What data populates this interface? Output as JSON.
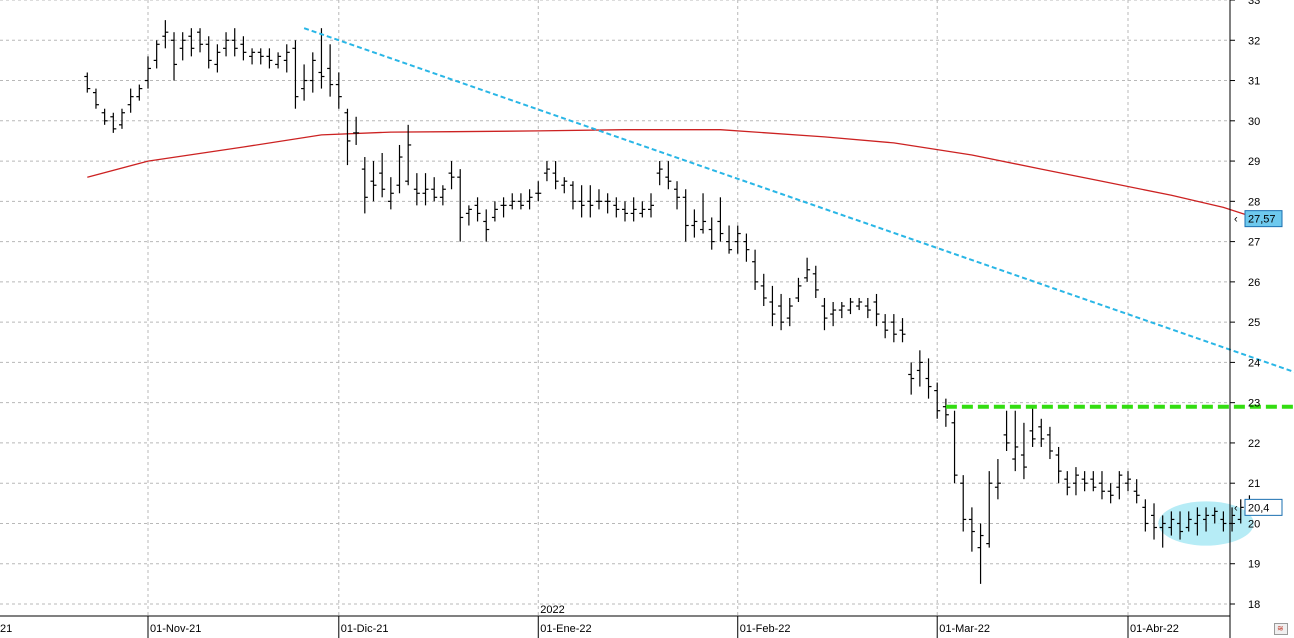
{
  "chart_data": {
    "type": "ohlc",
    "y_axis": {
      "ticks": [
        18,
        19,
        20,
        21,
        22,
        23,
        24,
        25,
        26,
        27,
        28,
        29,
        30,
        31,
        32,
        33
      ],
      "range": [
        17.6,
        33.1
      ],
      "position": "right"
    },
    "x_axis": {
      "tick_labels": [
        "21",
        "01-Nov-21",
        "01-Dic-21",
        "01-Ene-22",
        "01-Feb-22",
        "01-Mar-22",
        "01-Abr-22"
      ],
      "tick_day_index": [
        -7,
        0,
        22,
        45,
        68,
        91,
        113
      ],
      "year_marker": {
        "label": "2022",
        "day_index": 45
      },
      "range_days": [
        -7,
        132
      ]
    },
    "grid": true,
    "price_tags": [
      {
        "label": "27,57",
        "value": 27.57
      },
      {
        "label": "20,4",
        "value": 20.4
      }
    ],
    "moving_average": {
      "color": "#cc2222",
      "points": [
        [
          -7,
          28.6
        ],
        [
          0,
          29.0
        ],
        [
          11,
          29.35
        ],
        [
          20,
          29.65
        ],
        [
          28,
          29.72
        ],
        [
          35,
          29.73
        ],
        [
          45,
          29.75
        ],
        [
          55,
          29.78
        ],
        [
          66,
          29.78
        ],
        [
          78,
          29.6
        ],
        [
          86,
          29.45
        ],
        [
          95,
          29.15
        ],
        [
          103,
          28.8
        ],
        [
          110,
          28.5
        ],
        [
          118,
          28.15
        ],
        [
          124,
          27.85
        ],
        [
          128,
          27.57
        ]
      ]
    },
    "trendline": {
      "color": "#29b6e6",
      "start": [
        18,
        32.3
      ],
      "end": [
        133,
        23.7
      ]
    },
    "resistance": {
      "color": "#33dd11",
      "value": 22.9,
      "start": 92,
      "end": 133
    },
    "highlight_ellipse": {
      "color": "#aeeaf5",
      "center": [
        122,
        20.0
      ],
      "radius_days": 5.5,
      "radius_value": 0.55
    },
    "bars": [
      [
        -7,
        31.1,
        31.2,
        30.7,
        30.8
      ],
      [
        -6,
        30.7,
        30.8,
        30.3,
        30.4
      ],
      [
        -5,
        30.2,
        30.3,
        29.9,
        30.0
      ],
      [
        -4,
        30.1,
        30.2,
        29.7,
        29.8
      ],
      [
        -3,
        29.9,
        30.3,
        29.8,
        30.2
      ],
      [
        -2,
        30.4,
        30.8,
        30.2,
        30.6
      ],
      [
        -1,
        30.6,
        30.9,
        30.5,
        30.8
      ],
      [
        0,
        31.0,
        31.6,
        30.8,
        31.3
      ],
      [
        1,
        31.5,
        32.0,
        31.3,
        31.9
      ],
      [
        2,
        32.1,
        32.5,
        31.8,
        32.2
      ],
      [
        3,
        32.0,
        32.2,
        31.0,
        31.4
      ],
      [
        4,
        31.8,
        32.2,
        31.5,
        32.0
      ],
      [
        5,
        32.1,
        32.3,
        31.6,
        31.8
      ],
      [
        6,
        32.2,
        32.3,
        31.7,
        31.9
      ],
      [
        7,
        31.9,
        32.1,
        31.3,
        31.5
      ],
      [
        8,
        31.4,
        31.9,
        31.2,
        31.7
      ],
      [
        9,
        31.8,
        32.2,
        31.6,
        32.0
      ],
      [
        10,
        32.0,
        32.3,
        31.6,
        31.8
      ],
      [
        11,
        31.9,
        32.1,
        31.5,
        31.7
      ],
      [
        12,
        31.6,
        31.8,
        31.4,
        31.7
      ],
      [
        13,
        31.7,
        31.8,
        31.4,
        31.6
      ],
      [
        14,
        31.6,
        31.8,
        31.3,
        31.5
      ],
      [
        15,
        31.4,
        31.7,
        31.3,
        31.6
      ],
      [
        16,
        31.5,
        31.9,
        31.2,
        31.7
      ],
      [
        17,
        31.8,
        32.0,
        30.3,
        30.6
      ],
      [
        18,
        30.8,
        31.4,
        30.5,
        31.0
      ],
      [
        19,
        31.0,
        31.7,
        30.7,
        31.5
      ],
      [
        20,
        31.2,
        32.3,
        30.8,
        31.1
      ],
      [
        21,
        31.3,
        31.9,
        30.6,
        30.9
      ],
      [
        22,
        30.9,
        31.2,
        30.3,
        30.6
      ],
      [
        23,
        30.2,
        30.3,
        28.9,
        29.5
      ],
      [
        24,
        29.7,
        30.1,
        29.4,
        29.7
      ],
      [
        25,
        28.8,
        29.1,
        27.7,
        28.1
      ],
      [
        26,
        28.5,
        29.0,
        28.0,
        28.4
      ],
      [
        27,
        28.7,
        29.2,
        28.1,
        28.3
      ],
      [
        28,
        28.0,
        28.6,
        27.8,
        28.2
      ],
      [
        29,
        28.4,
        29.4,
        28.2,
        29.1
      ],
      [
        30,
        28.5,
        29.9,
        28.4,
        29.4
      ],
      [
        31,
        28.3,
        28.7,
        27.9,
        28.2
      ],
      [
        32,
        28.2,
        28.7,
        27.9,
        28.3
      ],
      [
        33,
        28.3,
        28.6,
        28.0,
        28.1
      ],
      [
        34,
        28.1,
        28.4,
        27.9,
        28.3
      ],
      [
        35,
        28.7,
        29.0,
        28.3,
        28.6
      ],
      [
        36,
        28.6,
        28.8,
        27.0,
        27.6
      ],
      [
        37,
        27.7,
        27.9,
        27.4,
        27.8
      ],
      [
        38,
        27.9,
        28.1,
        27.5,
        27.7
      ],
      [
        39,
        27.5,
        27.8,
        27.0,
        27.3
      ],
      [
        40,
        27.6,
        28.0,
        27.5,
        27.8
      ],
      [
        41,
        27.9,
        28.1,
        27.6,
        27.9
      ],
      [
        42,
        27.9,
        28.2,
        27.8,
        28.0
      ],
      [
        43,
        28.0,
        28.2,
        27.8,
        27.9
      ],
      [
        44,
        28.0,
        28.3,
        27.8,
        28.1
      ],
      [
        45,
        28.2,
        28.5,
        28.0,
        28.2
      ],
      [
        46,
        28.7,
        29.0,
        28.5,
        28.8
      ],
      [
        47,
        28.7,
        29.0,
        28.3,
        28.5
      ],
      [
        48,
        28.4,
        28.6,
        28.2,
        28.5
      ],
      [
        49,
        28.4,
        28.5,
        27.8,
        28.0
      ],
      [
        50,
        28.0,
        28.4,
        27.6,
        27.9
      ],
      [
        51,
        28.0,
        28.4,
        27.6,
        27.9
      ],
      [
        52,
        28.0,
        28.3,
        27.8,
        28.0
      ],
      [
        53,
        28.0,
        28.2,
        27.7,
        28.0
      ],
      [
        54,
        27.9,
        28.1,
        27.6,
        27.8
      ],
      [
        55,
        27.8,
        28.0,
        27.5,
        27.7
      ],
      [
        56,
        27.7,
        28.1,
        27.5,
        27.8
      ],
      [
        57,
        27.7,
        28.0,
        27.6,
        27.8
      ],
      [
        58,
        27.8,
        28.2,
        27.6,
        27.9
      ],
      [
        59,
        28.7,
        29.0,
        28.4,
        28.8
      ],
      [
        60,
        28.6,
        29.0,
        28.3,
        28.5
      ],
      [
        61,
        28.3,
        28.5,
        27.8,
        28.1
      ],
      [
        62,
        28.1,
        28.3,
        27.0,
        27.4
      ],
      [
        63,
        27.4,
        27.8,
        27.1,
        27.5
      ],
      [
        64,
        27.3,
        28.2,
        27.2,
        27.5
      ],
      [
        65,
        27.3,
        27.6,
        26.8,
        27.0
      ],
      [
        66,
        27.5,
        28.1,
        27.0,
        27.2
      ],
      [
        67,
        27.0,
        27.4,
        26.7,
        26.8
      ],
      [
        68,
        27.0,
        27.4,
        26.7,
        27.2
      ],
      [
        69,
        27.0,
        27.2,
        26.5,
        26.8
      ],
      [
        70,
        26.5,
        26.8,
        25.8,
        26.0
      ],
      [
        71,
        25.9,
        26.2,
        25.4,
        25.6
      ],
      [
        72,
        25.5,
        25.9,
        24.9,
        25.2
      ],
      [
        73,
        25.4,
        25.7,
        24.8,
        25.0
      ],
      [
        74,
        25.1,
        25.6,
        24.9,
        25.4
      ],
      [
        75,
        25.6,
        26.1,
        25.5,
        25.9
      ],
      [
        76,
        26.1,
        26.6,
        26.0,
        26.3
      ],
      [
        77,
        26.2,
        26.4,
        25.6,
        25.8
      ],
      [
        78,
        25.4,
        25.6,
        24.8,
        25.1
      ],
      [
        79,
        25.2,
        25.5,
        24.9,
        25.3
      ],
      [
        80,
        25.3,
        25.5,
        25.1,
        25.4
      ],
      [
        81,
        25.3,
        25.6,
        25.2,
        25.5
      ],
      [
        82,
        25.4,
        25.6,
        25.3,
        25.5
      ],
      [
        83,
        25.4,
        25.6,
        25.1,
        25.3
      ],
      [
        84,
        25.5,
        25.7,
        24.9,
        25.2
      ],
      [
        85,
        25.0,
        25.2,
        24.6,
        24.8
      ],
      [
        86,
        25.0,
        25.2,
        24.5,
        24.7
      ],
      [
        87,
        24.8,
        25.1,
        24.5,
        24.7
      ],
      [
        88,
        23.7,
        24.0,
        23.2,
        23.6
      ],
      [
        89,
        23.8,
        24.3,
        23.4,
        24.0
      ],
      [
        90,
        23.6,
        24.1,
        23.1,
        23.4
      ],
      [
        91,
        23.3,
        23.5,
        22.6,
        22.8
      ],
      [
        92,
        22.9,
        23.1,
        22.4,
        22.7
      ],
      [
        93,
        22.5,
        22.8,
        21.0,
        21.2
      ],
      [
        94,
        21.0,
        21.2,
        19.8,
        20.1
      ],
      [
        95,
        20.1,
        20.4,
        19.3,
        19.8
      ],
      [
        96,
        19.4,
        20.0,
        18.5,
        19.7
      ],
      [
        97,
        19.5,
        21.3,
        19.4,
        21.0
      ],
      [
        98,
        20.9,
        21.6,
        20.6,
        21.0
      ],
      [
        99,
        22.2,
        22.8,
        21.8,
        22.0
      ],
      [
        100,
        21.6,
        22.8,
        21.3,
        21.9
      ],
      [
        101,
        21.7,
        22.5,
        21.1,
        21.4
      ],
      [
        102,
        22.3,
        22.9,
        21.9,
        22.1
      ],
      [
        103,
        22.4,
        22.6,
        21.9,
        22.1
      ],
      [
        104,
        22.2,
        22.4,
        21.6,
        21.8
      ],
      [
        105,
        21.7,
        21.9,
        21.0,
        21.3
      ],
      [
        106,
        21.1,
        21.3,
        20.7,
        20.9
      ],
      [
        107,
        21.0,
        21.4,
        20.7,
        21.2
      ],
      [
        108,
        21.1,
        21.3,
        20.8,
        21.0
      ],
      [
        109,
        21.1,
        21.3,
        20.8,
        20.9
      ],
      [
        110,
        21.0,
        21.3,
        20.6,
        20.8
      ],
      [
        111,
        20.8,
        21.0,
        20.5,
        20.7
      ],
      [
        112,
        20.9,
        21.3,
        20.6,
        21.2
      ],
      [
        113,
        21.0,
        21.3,
        20.8,
        21.1
      ],
      [
        114,
        20.8,
        21.1,
        20.5,
        20.7
      ],
      [
        115,
        20.4,
        20.6,
        19.8,
        20.0
      ],
      [
        116,
        20.2,
        20.5,
        19.6,
        19.9
      ],
      [
        117,
        19.9,
        20.2,
        19.4,
        20.0
      ],
      [
        118,
        19.9,
        20.3,
        19.7,
        20.1
      ],
      [
        119,
        20.0,
        20.3,
        19.6,
        19.8
      ],
      [
        120,
        19.9,
        20.3,
        19.8,
        20.1
      ],
      [
        121,
        20.0,
        20.4,
        19.7,
        20.2
      ],
      [
        122,
        20.1,
        20.4,
        19.8,
        20.2
      ],
      [
        123,
        20.2,
        20.4,
        20.0,
        20.3
      ],
      [
        124,
        20.1,
        20.3,
        19.8,
        20.0
      ],
      [
        125,
        20.0,
        20.4,
        19.8,
        20.2
      ],
      [
        126,
        20.1,
        20.6,
        20.0,
        20.4
      ],
      [
        127,
        20.4,
        20.7,
        20.2,
        20.5
      ],
      [
        128,
        20.3,
        20.6,
        20.2,
        20.4
      ]
    ]
  }
}
